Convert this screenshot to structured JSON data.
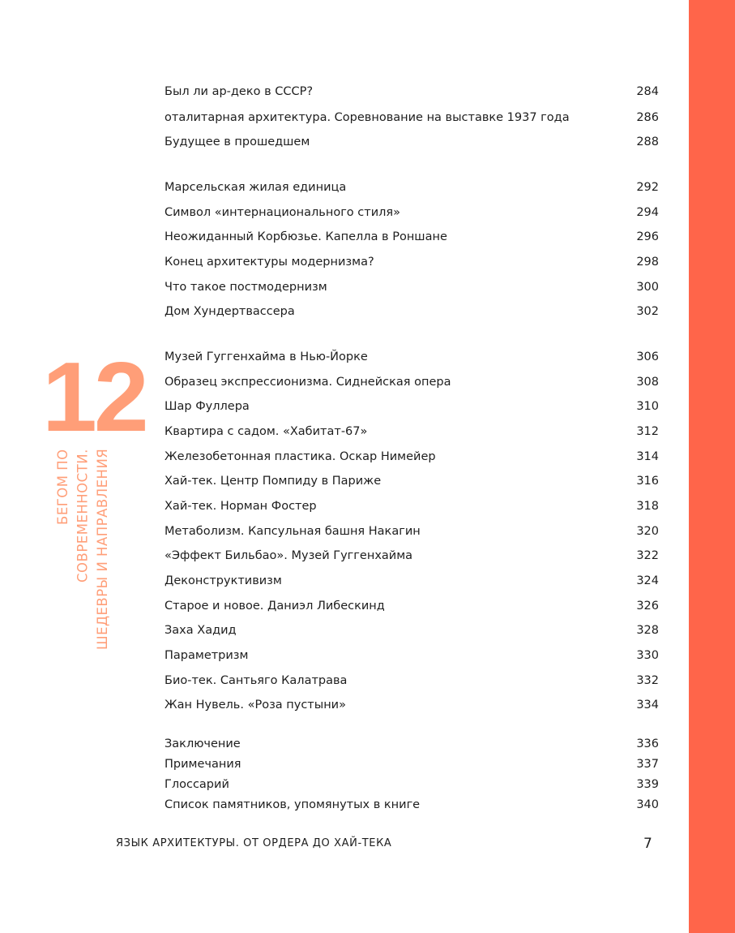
{
  "colors": {
    "accent_bar": "#ff654a",
    "chapter": "#ff9e78"
  },
  "chapter": {
    "number": "12",
    "title_lines": [
      "БЕГОМ ПО",
      "СОВРЕМЕННОСТИ.",
      "ШЕДЕВРЫ И НАПРАВЛЕНИЯ"
    ]
  },
  "toc": [
    {
      "title": "Был ли ар-деко в СССР?",
      "page": "284"
    },
    {
      "title": "оталитарная архитектура. Соревнование на выставке 1937 года",
      "page": "286"
    },
    {
      "title": "Будущее в прошедшем",
      "page": "288"
    },
    {
      "title": "Марсельская жилая единица",
      "page": "292"
    },
    {
      "title": "Символ «интернационального стиля»",
      "page": "294"
    },
    {
      "title": "Неожиданный Корбюзье. Капелла в Роншане",
      "page": "296"
    },
    {
      "title": "Конец архитектуры модернизма?",
      "page": "298"
    },
    {
      "title": "Что такое постмодернизм",
      "page": "300"
    },
    {
      "title": "Дом Хундертвассера",
      "page": "302"
    },
    {
      "title": "Музей Гуггенхайма в Нью-Йорке",
      "page": "306"
    },
    {
      "title": "Образец экспрессионизма. Сиднейская опера",
      "page": "308"
    },
    {
      "title": "Шар Фуллера",
      "page": "310"
    },
    {
      "title": "Квартира с садом. «Хабитат-67»",
      "page": "312"
    },
    {
      "title": "Железобетонная пластика. Оскар Нимейер",
      "page": "314"
    },
    {
      "title": "Хай-тек. Центр Помпиду в Париже",
      "page": "316"
    },
    {
      "title": "Хай-тек. Норман Фостер",
      "page": "318"
    },
    {
      "title": "Метаболизм. Капсульная башня Накагин",
      "page": "320"
    },
    {
      "title": "«Эффект Бильбао». Музей Гуггенхайма",
      "page": "322"
    },
    {
      "title": "Деконструктивизм",
      "page": "324"
    },
    {
      "title": "Старое и новое. Даниэл Либескинд",
      "page": "326"
    },
    {
      "title": "Заха Хадид",
      "page": "328"
    },
    {
      "title": "Параметризм",
      "page": "330"
    },
    {
      "title": "Био-тек. Сантьяго Калатрава",
      "page": "332"
    },
    {
      "title": "Жан Нувель. «Роза пустыни»",
      "page": "334"
    },
    {
      "title": "Заключение",
      "page": "336"
    },
    {
      "title": "Примечания",
      "page": "337"
    },
    {
      "title": "Глоссарий",
      "page": "339"
    },
    {
      "title": "Список памятников, упомянутых в книге",
      "page": "340"
    }
  ],
  "footer": {
    "book_title": "ЯЗЫК АРХИТЕКТУРЫ. ОТ ОРДЕРА ДО ХАЙ-ТЕКА",
    "page_number": "7"
  }
}
